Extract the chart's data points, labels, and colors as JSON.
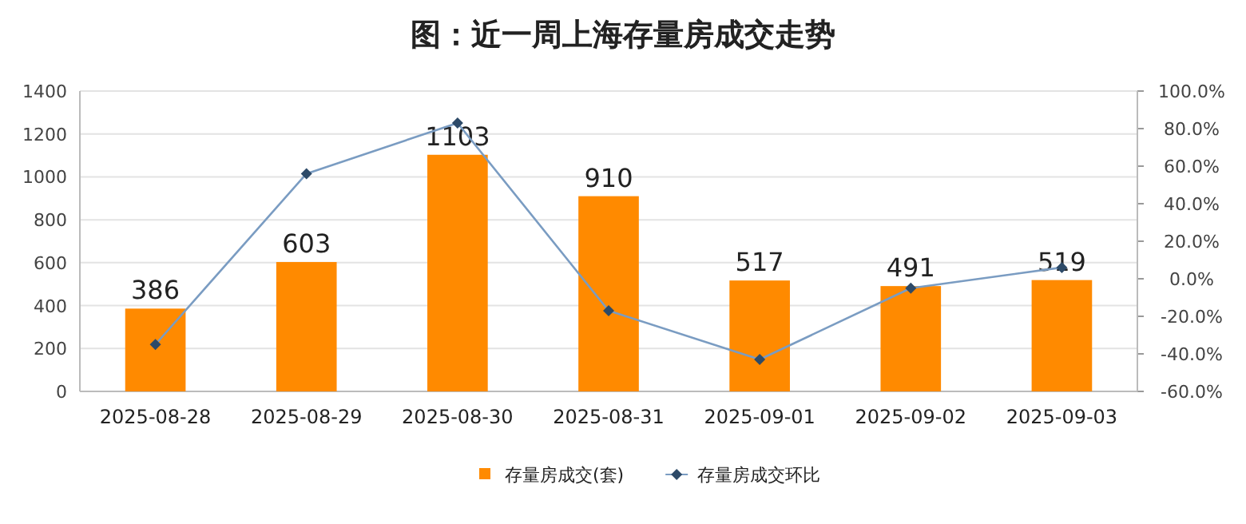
{
  "chart_data": {
    "type": "bar",
    "title": "图：近一周上海存量房成交走势",
    "categories": [
      "2025-08-28",
      "2025-08-29",
      "2025-08-30",
      "2025-08-31",
      "2025-09-01",
      "2025-09-02",
      "2025-09-03"
    ],
    "series": [
      {
        "name": "存量房成交(套)",
        "color": "#ff8a00",
        "values": [
          386,
          603,
          1103,
          910,
          517,
          491,
          519
        ],
        "value_labels": [
          "386",
          "603",
          "1103",
          "910",
          "517",
          "491",
          "519"
        ]
      },
      {
        "name": "存量房成交环比",
        "type": "line",
        "axis": "y2",
        "color": "#7a9cc2",
        "marker": "diamond",
        "values": [
          -35,
          56,
          83,
          -17,
          -43,
          -5,
          6
        ]
      }
    ],
    "ylim": [
      0,
      1400
    ],
    "yticks": [
      0,
      200,
      400,
      600,
      800,
      1000,
      1200,
      1400
    ],
    "y2lim": [
      -60,
      100
    ],
    "y2ticks": [
      {
        "value": -60,
        "label": "-60.0%"
      },
      {
        "value": -40,
        "label": "-40.0%"
      },
      {
        "value": -20,
        "label": "-20.0%"
      },
      {
        "value": 0,
        "label": "0.0%"
      },
      {
        "value": 20,
        "label": "20.0%"
      },
      {
        "value": 40,
        "label": "40.0%"
      },
      {
        "value": 60,
        "label": "60.0%"
      },
      {
        "value": 80,
        "label": "80.0%"
      },
      {
        "value": 100,
        "label": "100.0%"
      }
    ],
    "grid": "y",
    "legend": "bottom"
  }
}
